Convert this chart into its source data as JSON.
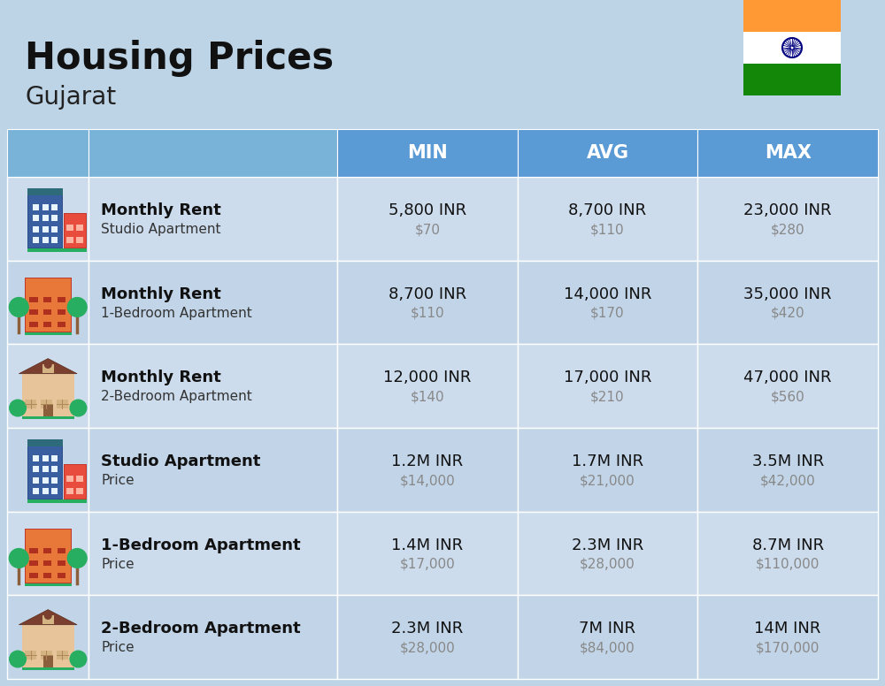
{
  "title": "Housing Prices",
  "subtitle": "Gujarat",
  "bg_color": "#bdd4e7",
  "header_bg": "#5b9bd5",
  "header_bg_left": "#7ab3d8",
  "row_bg_even": "#ccdced",
  "row_bg_odd": "#c2d5e8",
  "header_labels": [
    "MIN",
    "AVG",
    "MAX"
  ],
  "rows": [
    {
      "label_bold": "Monthly Rent",
      "label_sub": "Studio Apartment",
      "min_inr": "5,800 INR",
      "min_usd": "$70",
      "avg_inr": "8,700 INR",
      "avg_usd": "$110",
      "max_inr": "23,000 INR",
      "max_usd": "$280",
      "icon_type": "studio_blue"
    },
    {
      "label_bold": "Monthly Rent",
      "label_sub": "1-Bedroom Apartment",
      "min_inr": "8,700 INR",
      "min_usd": "$110",
      "avg_inr": "14,000 INR",
      "avg_usd": "$170",
      "max_inr": "35,000 INR",
      "max_usd": "$420",
      "icon_type": "one_bed_orange"
    },
    {
      "label_bold": "Monthly Rent",
      "label_sub": "2-Bedroom Apartment",
      "min_inr": "12,000 INR",
      "min_usd": "$140",
      "avg_inr": "17,000 INR",
      "avg_usd": "$210",
      "max_inr": "47,000 INR",
      "max_usd": "$560",
      "icon_type": "two_bed_house"
    },
    {
      "label_bold": "Studio Apartment",
      "label_sub": "Price",
      "min_inr": "1.2M INR",
      "min_usd": "$14,000",
      "avg_inr": "1.7M INR",
      "avg_usd": "$21,000",
      "max_inr": "3.5M INR",
      "max_usd": "$42,000",
      "icon_type": "studio_blue"
    },
    {
      "label_bold": "1-Bedroom Apartment",
      "label_sub": "Price",
      "min_inr": "1.4M INR",
      "min_usd": "$17,000",
      "avg_inr": "2.3M INR",
      "avg_usd": "$28,000",
      "max_inr": "8.7M INR",
      "max_usd": "$110,000",
      "icon_type": "one_bed_orange"
    },
    {
      "label_bold": "2-Bedroom Apartment",
      "label_sub": "Price",
      "min_inr": "2.3M INR",
      "min_usd": "$28,000",
      "avg_inr": "7M INR",
      "avg_usd": "$84,000",
      "max_inr": "14M INR",
      "max_usd": "$170,000",
      "icon_type": "two_bed_house"
    }
  ]
}
